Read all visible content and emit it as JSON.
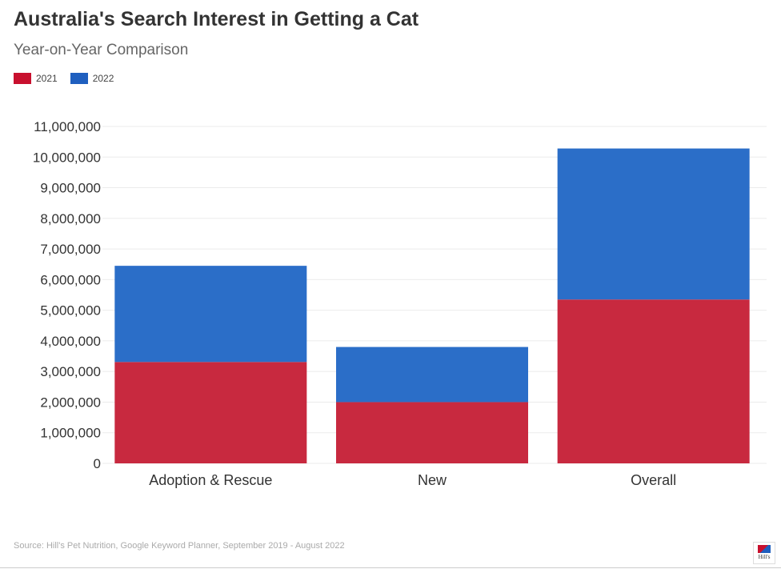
{
  "chart_data": {
    "type": "bar",
    "stacked": true,
    "title": "Australia's Search Interest in Getting a Cat",
    "subtitle": "Year-on-Year Comparison",
    "xlabel": "",
    "ylabel": "",
    "categories": [
      "Adoption & Rescue",
      "New",
      "Overall"
    ],
    "series": [
      {
        "name": "2021",
        "color": "#c8293f",
        "values": [
          3310000,
          2000000,
          5350000
        ]
      },
      {
        "name": "2022",
        "color": "#2b6ec8",
        "values": [
          3140000,
          1800000,
          4930000
        ]
      }
    ],
    "ylim": [
      0,
      11000000
    ],
    "yticks": [
      "0",
      "1,000,000",
      "2,000,000",
      "3,000,000",
      "4,000,000",
      "5,000,000",
      "6,000,000",
      "7,000,000",
      "8,000,000",
      "9,000,000",
      "10,000,000",
      "11,000,000"
    ],
    "grid": true,
    "legend": "top-left",
    "source": "Source: Hill's Pet Nutrition, Google Keyword Planner, September 2019 - August 2022"
  },
  "legend_colors": {
    "2021": "#c8102e",
    "2022": "#1f5fbf"
  },
  "logo_text": "Hill's"
}
